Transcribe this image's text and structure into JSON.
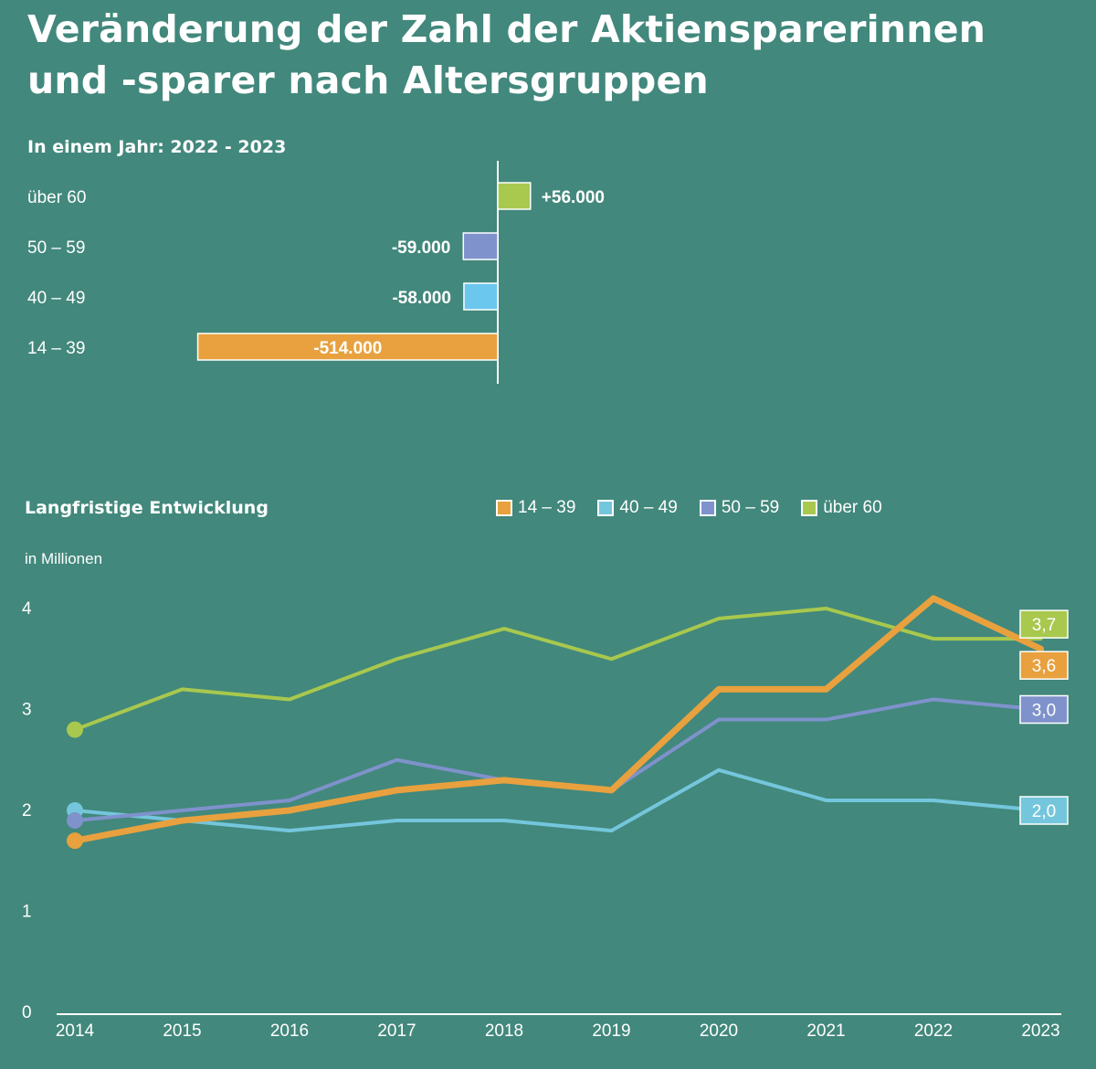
{
  "title_lines": [
    "Veränderung der Zahl der Aktienspar­erinnen",
    "und -sparer nach Altersgruppen"
  ],
  "chart_data": [
    {
      "type": "bar",
      "orientation": "horizontal",
      "title": "In einem Jahr: 2022 - 2023",
      "categories": [
        "über 60",
        "50 – 59",
        "40 – 49",
        "14 – 39"
      ],
      "values": [
        56000,
        -59000,
        -58000,
        -514000
      ],
      "value_labels": [
        "+56.000",
        "-59.000",
        "-58.000",
        "-514.000"
      ],
      "colors": [
        "#a8c84e",
        "#7f92cc",
        "#6cc7ee",
        "#e8a13e"
      ]
    },
    {
      "type": "line",
      "title": "Langfristige Entwicklung",
      "ylabel": "in Millionen",
      "ylim": [
        0,
        4
      ],
      "yticks": [
        0,
        1,
        2,
        3,
        4
      ],
      "x": [
        "2014",
        "2015",
        "2016",
        "2017",
        "2018",
        "2019",
        "2020",
        "2021",
        "2022",
        "2023"
      ],
      "series": [
        {
          "name": "14 – 39",
          "color": "#e8a13e",
          "values": [
            1.7,
            1.9,
            2.0,
            2.2,
            2.3,
            2.2,
            3.2,
            3.2,
            4.1,
            3.6
          ],
          "end_label": "3,6"
        },
        {
          "name": "40 – 49",
          "color": "#74c6dc",
          "values": [
            2.0,
            1.9,
            1.8,
            1.9,
            1.9,
            1.8,
            2.4,
            2.1,
            2.1,
            2.0
          ],
          "end_label": "2,0"
        },
        {
          "name": "50 – 59",
          "color": "#7f92cc",
          "values": [
            1.9,
            2.0,
            2.1,
            2.5,
            2.3,
            2.2,
            2.9,
            2.9,
            3.1,
            3.0
          ],
          "end_label": "3,0"
        },
        {
          "name": "über 60",
          "color": "#a8c84e",
          "values": [
            2.8,
            3.2,
            3.1,
            3.5,
            3.8,
            3.5,
            3.9,
            4.0,
            3.7,
            3.7
          ],
          "end_label": "3,7"
        }
      ]
    }
  ]
}
